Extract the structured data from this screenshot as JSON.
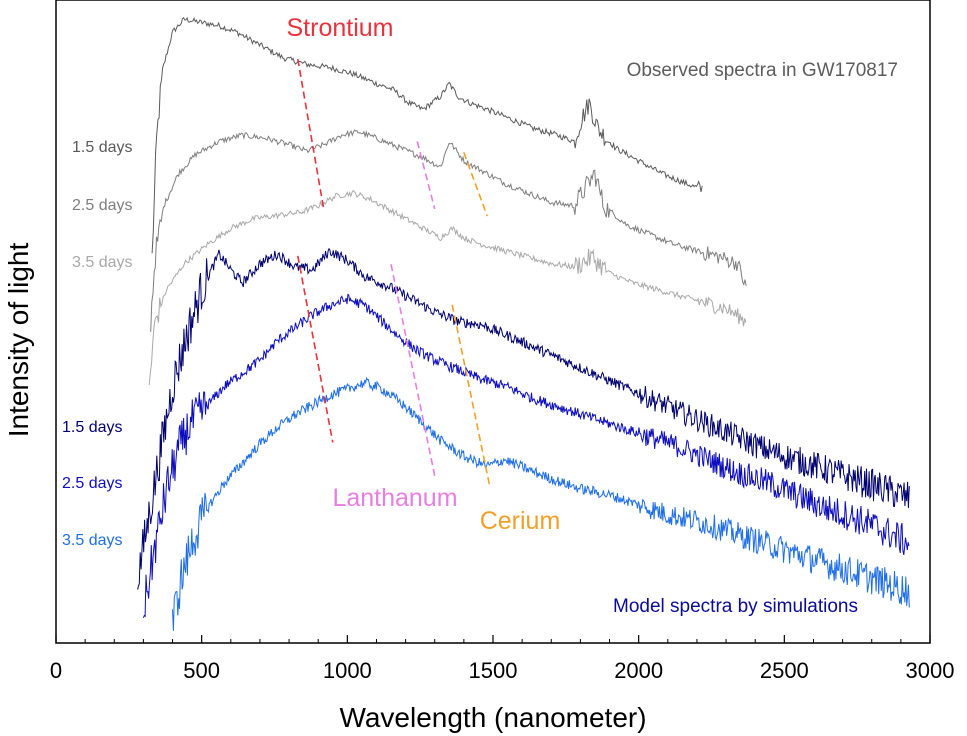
{
  "chart_data": {
    "type": "line",
    "title": "",
    "xlabel": "Wavelength (nanometer)",
    "ylabel": "Intensity of light",
    "xlim": [
      0,
      3000
    ],
    "ylim": [
      0,
      100
    ],
    "x_ticks": [
      0,
      500,
      1000,
      1500,
      2000,
      2500,
      3000
    ],
    "x_tick_labels": [
      "0",
      "500",
      "1000",
      "1500",
      "2000",
      "2500",
      "3000"
    ],
    "grid": false,
    "groups": {
      "observed": "Observed spectra in GW170817",
      "model": "Model spectra by simulations"
    },
    "series": [
      {
        "name": "Observed 1.5 days",
        "label": "1.5 days",
        "group": "observed",
        "color": "#5a5a5a",
        "x": [
          330,
          345,
          365,
          400,
          440,
          500,
          560,
          620,
          700,
          780,
          860,
          940,
          1020,
          1100,
          1160,
          1210,
          1260,
          1320,
          1350,
          1380,
          1420,
          1480,
          1560,
          1640,
          1720,
          1780,
          1800,
          1830,
          1860,
          1920,
          2000,
          2080,
          2160,
          2220
        ],
        "y": [
          60,
          78,
          89,
          95,
          97,
          96.5,
          96,
          95,
          93,
          91,
          90,
          89.5,
          88.5,
          87,
          86,
          84,
          83,
          85,
          87,
          85,
          84,
          83,
          81.5,
          80,
          79,
          78,
          81,
          84,
          80,
          77,
          75,
          73,
          71.5,
          70.5
        ]
      },
      {
        "name": "Observed 2.5 days",
        "label": "2.5 days",
        "group": "observed",
        "color": "#7e7e7e",
        "x": [
          325,
          340,
          370,
          420,
          480,
          560,
          640,
          720,
          800,
          860,
          920,
          980,
          1040,
          1100,
          1180,
          1260,
          1320,
          1350,
          1400,
          1460,
          1540,
          1620,
          1700,
          1780,
          1820,
          1850,
          1880,
          1960,
          2040,
          2120,
          2200,
          2280,
          2340,
          2370
        ],
        "y": [
          50,
          60,
          68,
          73,
          76,
          78,
          79,
          78.5,
          77.5,
          76.5,
          77.5,
          79,
          79.5,
          78.5,
          77,
          75.5,
          74,
          78,
          75,
          73.5,
          71.5,
          70,
          68.5,
          68,
          71,
          73,
          68,
          65,
          63.5,
          62,
          61,
          60,
          59,
          55
        ]
      },
      {
        "name": "Observed 3.5 days",
        "label": "3.5 days",
        "group": "observed",
        "color": "#a8a8a8",
        "x": [
          320,
          340,
          380,
          440,
          520,
          600,
          680,
          760,
          840,
          900,
          960,
          1020,
          1080,
          1140,
          1200,
          1260,
          1320,
          1360,
          1400,
          1460,
          1540,
          1620,
          1700,
          1780,
          1840,
          1900,
          1980,
          2060,
          2140,
          2220,
          2300,
          2370
        ],
        "y": [
          40,
          50,
          55,
          59,
          62,
          64.5,
          66,
          66.5,
          67,
          68,
          69.5,
          70,
          69,
          67.5,
          66,
          64.5,
          63,
          64.5,
          63,
          62,
          61,
          60,
          59,
          58.5,
          60,
          57.5,
          56,
          55,
          54,
          53,
          52,
          50
        ]
      },
      {
        "name": "Model 1.5 days",
        "label": "1.5 days",
        "group": "model",
        "color": "#000070",
        "x": [
          280,
          320,
          360,
          400,
          450,
          500,
          560,
          600,
          640,
          700,
          760,
          820,
          880,
          940,
          1000,
          1060,
          1140,
          1220,
          1300,
          1380,
          1460,
          1540,
          1640,
          1740,
          1840,
          1940,
          2040,
          2140,
          2240,
          2340,
          2440,
          2540,
          2640,
          2740,
          2840,
          2930
        ],
        "y": [
          10,
          20,
          30,
          40,
          48,
          55,
          60.5,
          58,
          56,
          59,
          60.5,
          58.5,
          58,
          61,
          59.5,
          57,
          55.5,
          53.5,
          51.5,
          50,
          49.5,
          48,
          46,
          44,
          42,
          40,
          38,
          36,
          34,
          32,
          30,
          28.5,
          27,
          25.5,
          24,
          22.5
        ]
      },
      {
        "name": "Model 2.5 days",
        "label": "2.5 days",
        "group": "model",
        "color": "#0d0dbe",
        "x": [
          300,
          340,
          380,
          420,
          460,
          520,
          580,
          640,
          700,
          760,
          820,
          880,
          940,
          1000,
          1060,
          1120,
          1180,
          1240,
          1300,
          1380,
          1460,
          1540,
          1640,
          1740,
          1840,
          1940,
          2040,
          2140,
          2240,
          2340,
          2440,
          2540,
          2640,
          2740,
          2840,
          2930
        ],
        "y": [
          5,
          15,
          24,
          30,
          34,
          37,
          40,
          42,
          44,
          47,
          49,
          51,
          52.5,
          53.5,
          52.5,
          50,
          47.5,
          45.5,
          44,
          42.5,
          41,
          40,
          38,
          36.5,
          35,
          33.5,
          32,
          30.5,
          28.5,
          26.5,
          25,
          23,
          21,
          19.5,
          17.5,
          15.5
        ]
      },
      {
        "name": "Model 3.5 days",
        "label": "3.5 days",
        "group": "model",
        "color": "#1f6ee6",
        "x": [
          400,
          430,
          470,
          520,
          580,
          640,
          700,
          760,
          820,
          880,
          940,
          1000,
          1060,
          1120,
          1180,
          1240,
          1320,
          1400,
          1480,
          1540,
          1620,
          1700,
          1800,
          1900,
          2000,
          2100,
          2200,
          2300,
          2400,
          2500,
          2600,
          2700,
          2800,
          2930
        ],
        "y": [
          3,
          10,
          16,
          21,
          25,
          28,
          31,
          33.5,
          35.5,
          37,
          38.5,
          39.5,
          40.5,
          39.5,
          37.5,
          35,
          31.5,
          29,
          27.5,
          28.5,
          27,
          25.5,
          24,
          23,
          21.5,
          20,
          19,
          17.5,
          16,
          14.5,
          13,
          11.5,
          10,
          8
        ]
      }
    ],
    "annotations": [
      {
        "label": "Strontium",
        "color": "#e8323c",
        "obs_line": [
          [
            830,
            90.8
          ],
          [
            920,
            67.2
          ]
        ],
        "model_line": [
          [
            830,
            60.2
          ],
          [
            950,
            31.2
          ]
        ]
      },
      {
        "label": "Lanthanum",
        "color": "#e87ee0",
        "obs_line": [
          [
            1240,
            78
          ],
          [
            1300,
            67.5
          ]
        ],
        "model_line": [
          [
            1150,
            58.9
          ],
          [
            1300,
            26
          ]
        ]
      },
      {
        "label": "Cerium",
        "color": "#f0a028",
        "obs_line": [
          [
            1400,
            76.3
          ],
          [
            1480,
            66.4
          ]
        ],
        "model_line": [
          [
            1360,
            52.6
          ],
          [
            1490,
            24.1
          ]
        ]
      }
    ]
  }
}
